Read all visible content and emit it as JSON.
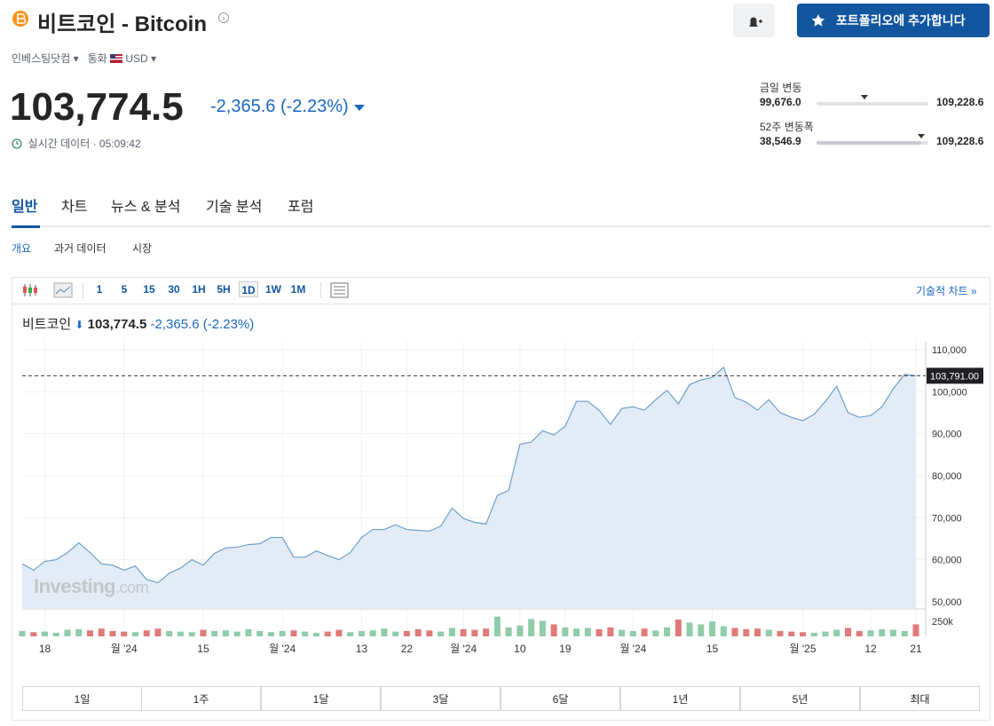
{
  "header": {
    "title": "비트코인 - Bitcoin",
    "source": "인베스팅닷컴",
    "currency_label": "통화",
    "currency": "USD",
    "portfolio_button": "포트폴리오에 추가합니다"
  },
  "quote": {
    "price": "103,774.5",
    "change": "-2,365.6",
    "change_pct": "(-2.23%)",
    "time": "실시간 데이터 · 05:09:42"
  },
  "ranges": [
    {
      "label": "금일 변동",
      "low": "99,676.0",
      "high": "109,228.6"
    },
    {
      "label": "52주 변동폭",
      "low": "38,546.9",
      "high": "109,228.6"
    }
  ],
  "tabs": [
    "일반",
    "차트",
    "뉴스 & 분석",
    "기술 분석",
    "포럼"
  ],
  "subtabs": [
    "개요",
    "과거 데이터",
    "시장"
  ],
  "toolbar": {
    "intervals": [
      "1",
      "5",
      "15",
      "30",
      "1H",
      "5H",
      "1D",
      "1W",
      "1M"
    ],
    "link": "기술적 차트 »"
  },
  "watermark": {
    "brand": "Investing",
    "suffix": ".com"
  },
  "periods": [
    "1일",
    "1주",
    "1달",
    "3달",
    "6달",
    "1년",
    "5년",
    "최대"
  ],
  "chart_data": {
    "type": "line",
    "categories": [
      null,
      null,
      "18",
      null,
      null,
      null,
      null,
      null,
      null,
      "월 '24",
      null,
      null,
      null,
      null,
      null,
      null,
      "15",
      null,
      null,
      null,
      null,
      null,
      null,
      "월 '24",
      null,
      null,
      null,
      null,
      null,
      null,
      "13",
      null,
      null,
      null,
      "22",
      null,
      null,
      null,
      null,
      "월 '24",
      null,
      null,
      null,
      null,
      "10",
      null,
      null,
      null,
      "19",
      null,
      null,
      null,
      null,
      null,
      "월 '24",
      null,
      null,
      null,
      null,
      null,
      null,
      "15",
      null,
      null,
      null,
      null,
      null,
      null,
      null,
      "월 '25",
      null,
      null,
      null,
      null,
      null,
      "12",
      null,
      null,
      null,
      "21"
    ],
    "series": [
      {
        "name": "비트코인",
        "color": "#6f9fca",
        "fill": "#e3ecf6",
        "values": [
          59000,
          57500,
          59600,
          60000,
          61700,
          64000,
          61700,
          59000,
          58700,
          57500,
          58500,
          55300,
          54500,
          56800,
          58000,
          60000,
          58700,
          61500,
          62800,
          63000,
          63600,
          63800,
          65300,
          65300,
          60600,
          60600,
          62100,
          61000,
          60000,
          61700,
          65300,
          67200,
          67200,
          68300,
          67200,
          67000,
          66800,
          68000,
          72300,
          69800,
          68900,
          68500,
          75300,
          76500,
          87500,
          88000,
          90700,
          89700,
          91800,
          97700,
          97700,
          95600,
          92200,
          96000,
          96400,
          95600,
          98100,
          100300,
          97100,
          101700,
          102800,
          103400,
          105800,
          98600,
          97500,
          95600,
          98100,
          95000,
          93900,
          93100,
          94600,
          97700,
          101300,
          95000,
          93900,
          94300,
          96400,
          100700,
          104100,
          103800
        ]
      }
    ],
    "ylim": [
      48300,
      111900
    ],
    "yticks": [
      {
        "value": 50000,
        "label": "50,000"
      },
      {
        "value": 60000,
        "label": "60,000"
      },
      {
        "value": 70000,
        "label": "70,000"
      },
      {
        "value": 80000,
        "label": "80,000"
      },
      {
        "value": 90000,
        "label": "90,000"
      },
      {
        "value": 100000,
        "label": "100,000"
      },
      {
        "value": 110000,
        "label": "110,000"
      }
    ],
    "last_price": {
      "value": 103791,
      "label": "103,791.00"
    },
    "volume": {
      "up_color": "#8fcca9",
      "down_color": "#e07a7a",
      "ylim": [
        0,
        400000
      ],
      "yticks": [
        {
          "value": 250000,
          "label": "250k"
        }
      ],
      "values": [
        90000,
        70000,
        80000,
        60000,
        110000,
        120000,
        100000,
        130000,
        90000,
        80000,
        70000,
        100000,
        130000,
        90000,
        80000,
        70000,
        110000,
        90000,
        100000,
        80000,
        120000,
        90000,
        70000,
        90000,
        100000,
        80000,
        60000,
        80000,
        110000,
        70000,
        90000,
        100000,
        130000,
        80000,
        90000,
        120000,
        100000,
        80000,
        140000,
        120000,
        110000,
        130000,
        330000,
        150000,
        180000,
        290000,
        260000,
        200000,
        150000,
        130000,
        140000,
        120000,
        150000,
        110000,
        90000,
        130000,
        100000,
        150000,
        280000,
        230000,
        200000,
        250000,
        170000,
        140000,
        120000,
        130000,
        110000,
        90000,
        80000,
        70000,
        60000,
        80000,
        110000,
        140000,
        90000,
        100000,
        120000,
        110000,
        90000,
        200000
      ]
    },
    "grid": true
  }
}
